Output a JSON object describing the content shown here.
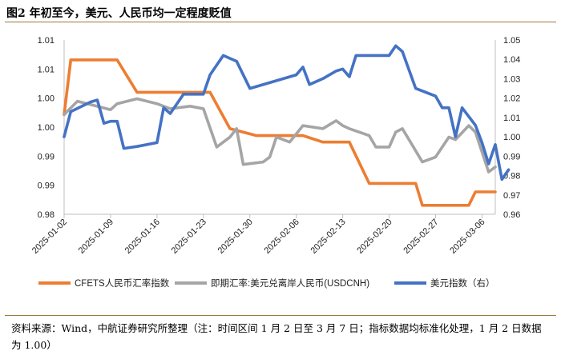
{
  "figure": {
    "title": "图2 年初至今，美元、人民币均一定程度贬值",
    "source": "资料来源：Wind，中航证券研究所整理（注：时间区间 1 月 2 日至 3 月 7 日；指标数据均标准化处理，1 月 2 日数据为 1.00）"
  },
  "chart_data": {
    "type": "line",
    "title": "",
    "xlabel": "",
    "ylabel": "",
    "x_ticks": [
      "2025-01-02",
      "2025-01-09",
      "2025-01-16",
      "2025-01-23",
      "2025-01-30",
      "2025-02-06",
      "2025-02-13",
      "2025-02-20",
      "2025-02-27",
      "2025-03-06"
    ],
    "x_range": [
      "2025-01-02",
      "2025-03-08"
    ],
    "y_left": {
      "ylim": [
        0.98,
        1.015
      ],
      "ticks": [
        "1.01",
        "1.01",
        "1.00",
        "1.00",
        "0.99",
        "0.99",
        "0.98"
      ]
    },
    "y_right": {
      "ylim": [
        0.96,
        1.05
      ],
      "ticks": [
        "1.05",
        "1.04",
        "1.03",
        "1.02",
        "1.01",
        "1.00",
        "0.99",
        "0.98",
        "0.97",
        "0.96"
      ]
    },
    "grid": false,
    "legend_position": "bottom",
    "series": [
      {
        "name": "CFETS人民币汇率指数",
        "axis": "left",
        "color": "#ed7d31",
        "points": [
          [
            "2025-01-02",
            1.0
          ],
          [
            "2025-01-03",
            1.011
          ],
          [
            "2025-01-10",
            1.011
          ],
          [
            "2025-01-13",
            1.0045
          ],
          [
            "2025-01-24",
            1.0045
          ],
          [
            "2025-01-27",
            0.9972
          ],
          [
            "2025-01-31",
            0.9958
          ],
          [
            "2025-02-07",
            0.9958
          ],
          [
            "2025-02-10",
            0.9945
          ],
          [
            "2025-02-14",
            0.9945
          ],
          [
            "2025-02-17",
            0.9862
          ],
          [
            "2025-02-24",
            0.9862
          ],
          [
            "2025-02-25",
            0.9818
          ],
          [
            "2025-03-04",
            0.9818
          ],
          [
            "2025-03-05",
            0.9845
          ],
          [
            "2025-03-08",
            0.9845
          ]
        ]
      },
      {
        "name": "即期汇率:美元兑离岸人民币(USDCNH)",
        "axis": "left",
        "color": "#a5a5a5",
        "points": [
          [
            "2025-01-02",
            1.0
          ],
          [
            "2025-01-04",
            1.0027
          ],
          [
            "2025-01-09",
            1.001
          ],
          [
            "2025-01-10",
            1.0022
          ],
          [
            "2025-01-13",
            1.0032
          ],
          [
            "2025-01-16",
            1.0022
          ],
          [
            "2025-01-18",
            1.0012
          ],
          [
            "2025-01-21",
            1.0017
          ],
          [
            "2025-01-23",
            1.0012
          ],
          [
            "2025-01-25",
            0.9935
          ],
          [
            "2025-01-27",
            0.9955
          ],
          [
            "2025-01-28",
            0.9972
          ],
          [
            "2025-01-29",
            0.99
          ],
          [
            "2025-02-01",
            0.9905
          ],
          [
            "2025-02-02",
            0.9915
          ],
          [
            "2025-02-03",
            0.9955
          ],
          [
            "2025-02-05",
            0.9945
          ],
          [
            "2025-02-07",
            0.9978
          ],
          [
            "2025-02-10",
            0.9972
          ],
          [
            "2025-02-12",
            0.9988
          ],
          [
            "2025-02-13",
            0.9978
          ],
          [
            "2025-02-14",
            0.9972
          ],
          [
            "2025-02-17",
            0.9958
          ],
          [
            "2025-02-18",
            0.9935
          ],
          [
            "2025-02-20",
            0.9935
          ],
          [
            "2025-02-21",
            0.9965
          ],
          [
            "2025-02-22",
            0.9972
          ],
          [
            "2025-02-25",
            0.9905
          ],
          [
            "2025-02-27",
            0.9915
          ],
          [
            "2025-03-01",
            0.9955
          ],
          [
            "2025-03-02",
            0.995
          ],
          [
            "2025-03-04",
            0.9978
          ],
          [
            "2025-03-05",
            0.9965
          ],
          [
            "2025-03-07",
            0.9885
          ],
          [
            "2025-03-08",
            0.9895
          ]
        ]
      },
      {
        "name": "美元指数（右）",
        "axis": "right",
        "color": "#4472c4",
        "points": [
          [
            "2025-01-02",
            1.0
          ],
          [
            "2025-01-03",
            1.013
          ],
          [
            "2025-01-06",
            1.018
          ],
          [
            "2025-01-07",
            1.019
          ],
          [
            "2025-01-08",
            1.007
          ],
          [
            "2025-01-09",
            1.008
          ],
          [
            "2025-01-10",
            1.008
          ],
          [
            "2025-01-11",
            0.994
          ],
          [
            "2025-01-13",
            0.995
          ],
          [
            "2025-01-16",
            0.997
          ],
          [
            "2025-01-17",
            1.015
          ],
          [
            "2025-01-18",
            1.012
          ],
          [
            "2025-01-20",
            1.022
          ],
          [
            "2025-01-23",
            1.022
          ],
          [
            "2025-01-24",
            1.032
          ],
          [
            "2025-01-26",
            1.042
          ],
          [
            "2025-01-28",
            1.039
          ],
          [
            "2025-01-30",
            1.025
          ],
          [
            "2025-02-06",
            1.032
          ],
          [
            "2025-02-07",
            1.036
          ],
          [
            "2025-02-08",
            1.027
          ],
          [
            "2025-02-10",
            1.03
          ],
          [
            "2025-02-12",
            1.034
          ],
          [
            "2025-02-13",
            1.035
          ],
          [
            "2025-02-14",
            1.031
          ],
          [
            "2025-02-15",
            1.042
          ],
          [
            "2025-02-19",
            1.042
          ],
          [
            "2025-02-20",
            1.042
          ],
          [
            "2025-02-21",
            1.047
          ],
          [
            "2025-02-22",
            1.044
          ],
          [
            "2025-02-24",
            1.025
          ],
          [
            "2025-02-27",
            1.021
          ],
          [
            "2025-02-28",
            1.015
          ],
          [
            "2025-03-01",
            1.015
          ],
          [
            "2025-03-02",
            1.0
          ],
          [
            "2025-03-03",
            1.015
          ],
          [
            "2025-03-05",
            1.006
          ],
          [
            "2025-03-06",
            0.997
          ],
          [
            "2025-03-07",
            0.986
          ],
          [
            "2025-03-08",
            0.996
          ],
          [
            "2025-03-09",
            0.978
          ],
          [
            "2025-03-10",
            0.983
          ]
        ]
      }
    ]
  }
}
